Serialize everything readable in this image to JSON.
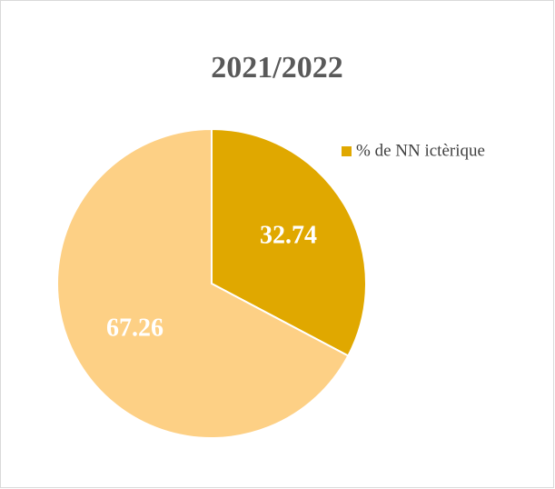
{
  "chart_data": {
    "type": "pie",
    "title": "2021/2022",
    "categories": [
      "% de NN ictèrique",
      null
    ],
    "values": [
      32.74,
      67.26
    ],
    "colors": [
      "#e0a800",
      "#fdd085"
    ],
    "legend": "right"
  }
}
